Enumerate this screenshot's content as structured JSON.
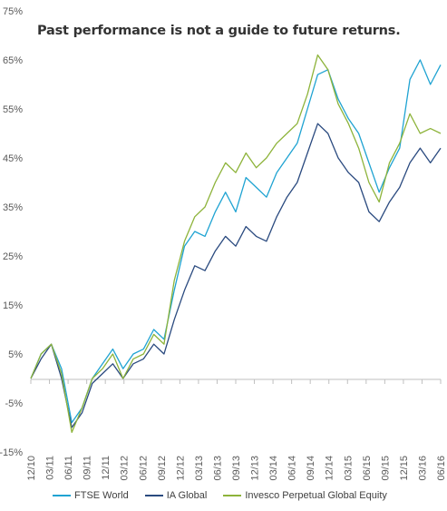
{
  "chart_data": {
    "type": "line",
    "title": "",
    "annotation": "Past performance is not a guide to future returns.",
    "xlabel": "",
    "ylabel": "",
    "ylim": [
      -15,
      75
    ],
    "y_ticks": [
      "-15%",
      "-5%",
      "5%",
      "15%",
      "25%",
      "35%",
      "45%",
      "55%",
      "65%",
      "75%"
    ],
    "x_ticks": [
      "12/10",
      "03/11",
      "06/11",
      "09/11",
      "12/11",
      "03/12",
      "06/12",
      "09/12",
      "12/12",
      "03/13",
      "06/13",
      "09/13",
      "12/13",
      "03/14",
      "06/14",
      "09/14",
      "12/14",
      "03/15",
      "06/15",
      "09/15",
      "12/15",
      "03/16",
      "06/16"
    ],
    "grid": false,
    "legend_placement": "bottom",
    "series": [
      {
        "name": "FTSE World",
        "color": "#1fa3d2",
        "values": [
          0,
          5,
          7,
          2,
          -9,
          -6,
          0,
          3,
          6,
          2,
          5,
          6,
          10,
          8,
          18,
          27,
          30,
          29,
          34,
          38,
          34,
          41,
          39,
          37,
          42,
          45,
          48,
          55,
          62,
          63,
          57,
          53,
          50,
          44,
          38,
          43,
          47,
          61,
          65,
          60,
          64
        ]
      },
      {
        "name": "IA Global",
        "color": "#2a4a7f",
        "values": [
          0,
          4,
          7,
          0,
          -10,
          -7,
          -1,
          1,
          3,
          0,
          3,
          4,
          7,
          5,
          12,
          18,
          23,
          22,
          26,
          29,
          27,
          31,
          29,
          28,
          33,
          37,
          40,
          46,
          52,
          50,
          45,
          42,
          40,
          34,
          32,
          36,
          39,
          44,
          47,
          44,
          47
        ]
      },
      {
        "name": "Invesco Perpetual Global Equity",
        "color": "#8db33a",
        "values": [
          0,
          5,
          7,
          1,
          -11,
          -6,
          0,
          2,
          5,
          0,
          4,
          5,
          9,
          7,
          20,
          28,
          33,
          35,
          40,
          44,
          42,
          46,
          43,
          45,
          48,
          50,
          52,
          58,
          66,
          63,
          56,
          52,
          47,
          40,
          36,
          44,
          48,
          54,
          50,
          51,
          50
        ]
      }
    ]
  }
}
